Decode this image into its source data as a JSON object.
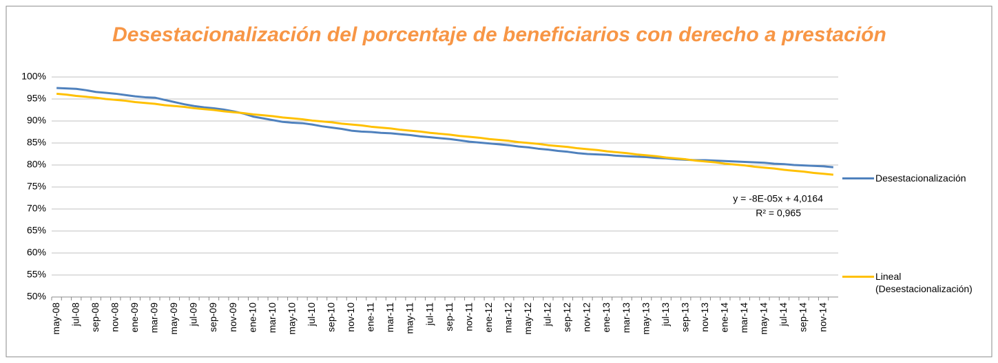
{
  "chart_data": {
    "type": "line",
    "title": "Desestacionalización del porcentaje de beneficiarios con derecho a prestación",
    "categories": [
      "may-08",
      null,
      "jul-08",
      null,
      "sep-08",
      null,
      "nov-08",
      null,
      "ene-09",
      null,
      "mar-09",
      null,
      "may-09",
      null,
      "jul-09",
      null,
      "sep-09",
      null,
      "nov-09",
      null,
      "ene-10",
      null,
      "mar-10",
      null,
      "may-10",
      null,
      "jul-10",
      null,
      "sep-10",
      null,
      "nov-10",
      null,
      "ene-11",
      null,
      "mar-11",
      null,
      "may-11",
      null,
      "jul-11",
      null,
      "sep-11",
      null,
      "nov-11",
      null,
      "ene-12",
      null,
      "mar-12",
      null,
      "may-12",
      null,
      "jul-12",
      null,
      "sep-12",
      null,
      "nov-12",
      null,
      "ene-13",
      null,
      "mar-13",
      null,
      "may-13",
      null,
      "jul-13",
      null,
      "sep-13",
      null,
      "nov-13",
      null,
      "ene-14",
      null,
      "mar-14",
      null,
      "may-14",
      null,
      "jul-14",
      null,
      "sep-14",
      null,
      "nov-14",
      null
    ],
    "series": [
      {
        "name": "Desestacionalización",
        "color": "#4f81bd",
        "values": [
          97.5,
          97.4,
          97.3,
          97.0,
          96.6,
          96.4,
          96.2,
          95.9,
          95.6,
          95.4,
          95.3,
          94.8,
          94.3,
          93.8,
          93.4,
          93.1,
          92.9,
          92.6,
          92.2,
          91.7,
          91.0,
          90.6,
          90.2,
          89.8,
          89.6,
          89.5,
          89.2,
          88.8,
          88.5,
          88.2,
          87.8,
          87.6,
          87.5,
          87.3,
          87.2,
          87.0,
          86.8,
          86.5,
          86.3,
          86.1,
          85.9,
          85.6,
          85.3,
          85.1,
          84.9,
          84.7,
          84.5,
          84.2,
          84.0,
          83.7,
          83.5,
          83.2,
          83.0,
          82.7,
          82.5,
          82.4,
          82.3,
          82.1,
          82.0,
          81.9,
          81.8,
          81.6,
          81.5,
          81.3,
          81.2,
          81.1,
          81.1,
          81.0,
          80.9,
          80.8,
          80.7,
          80.6,
          80.5,
          80.3,
          80.2,
          80.0,
          79.9,
          79.8,
          79.7,
          79.5
        ]
      },
      {
        "name": "Lineal (Desestacionalización)",
        "color": "#ffc000",
        "values": [
          96.2,
          96.0,
          95.7,
          95.5,
          95.3,
          95.0,
          94.8,
          94.6,
          94.3,
          94.1,
          93.9,
          93.6,
          93.4,
          93.2,
          92.9,
          92.7,
          92.5,
          92.2,
          92.0,
          91.8,
          91.5,
          91.3,
          91.1,
          90.8,
          90.6,
          90.4,
          90.1,
          89.9,
          89.7,
          89.4,
          89.2,
          89.0,
          88.7,
          88.5,
          88.3,
          88.0,
          87.8,
          87.6,
          87.3,
          87.1,
          86.9,
          86.6,
          86.4,
          86.2,
          85.9,
          85.7,
          85.5,
          85.2,
          85.0,
          84.8,
          84.5,
          84.3,
          84.1,
          83.8,
          83.6,
          83.4,
          83.1,
          82.9,
          82.7,
          82.4,
          82.2,
          82.0,
          81.7,
          81.5,
          81.3,
          81.0,
          80.8,
          80.6,
          80.3,
          80.1,
          79.9,
          79.6,
          79.4,
          79.2,
          78.9,
          78.7,
          78.5,
          78.2,
          78.0,
          77.8
        ]
      }
    ],
    "ylim": [
      50,
      100
    ],
    "yticks": [
      {
        "value": 50,
        "label": "50%"
      },
      {
        "value": 55,
        "label": "55%"
      },
      {
        "value": 60,
        "label": "60%"
      },
      {
        "value": 65,
        "label": "65%"
      },
      {
        "value": 70,
        "label": "70%"
      },
      {
        "value": 75,
        "label": "75%"
      },
      {
        "value": 80,
        "label": "80%"
      },
      {
        "value": 85,
        "label": "85%"
      },
      {
        "value": 90,
        "label": "90%"
      },
      {
        "value": 95,
        "label": "95%"
      },
      {
        "value": 100,
        "label": "100%"
      }
    ],
    "grid": true,
    "legend": "right",
    "annotations": [
      "y = -8E-05x + 4,0164",
      "R² = 0,965"
    ]
  }
}
